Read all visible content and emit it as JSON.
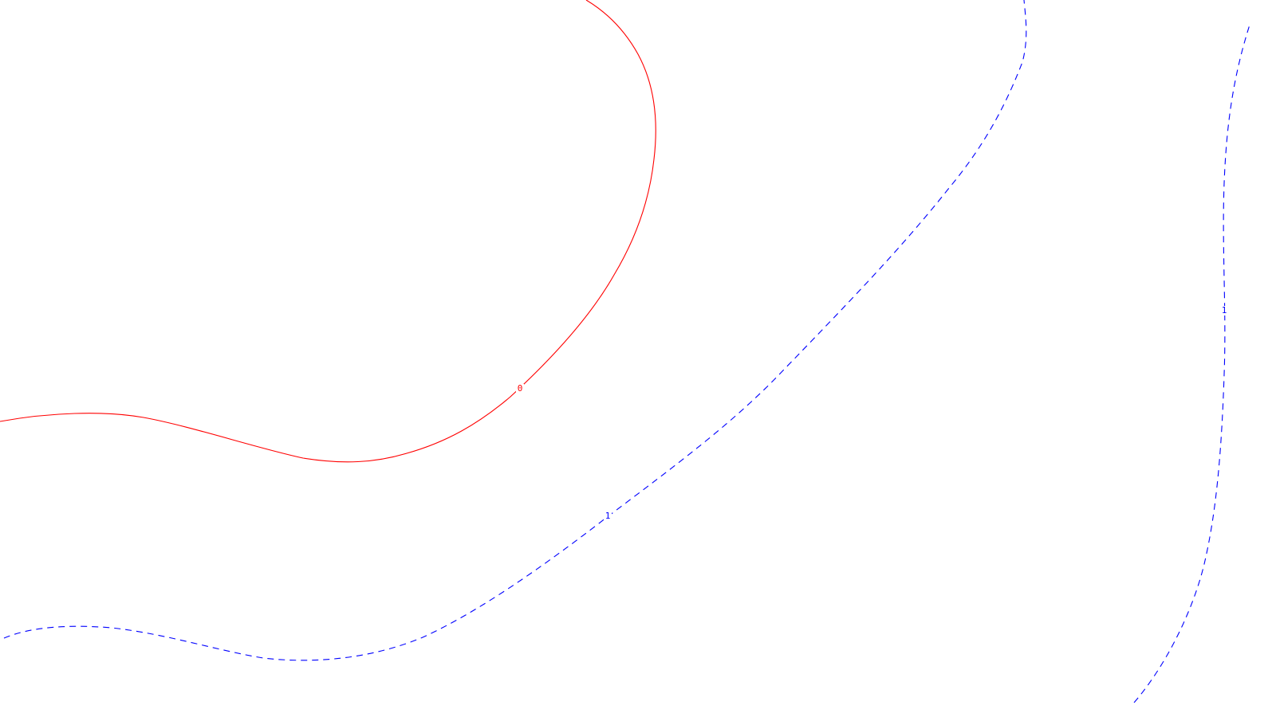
{
  "chart_data": {
    "type": "line",
    "title": "",
    "xlabel": "",
    "ylabel": "",
    "grid": false,
    "legend": "none",
    "colors": {
      "positive": "#ff0000",
      "negative": "#0000ff",
      "background": "#ffffff"
    },
    "contours": [
      {
        "level_label": "0",
        "color": "#ff0000",
        "dash": "solid"
      },
      {
        "level_label": "1",
        "color": "#0000ff",
        "dash": "dashed"
      },
      {
        "level_label": "1",
        "color": "#0000ff",
        "dash": "dashed"
      }
    ]
  }
}
